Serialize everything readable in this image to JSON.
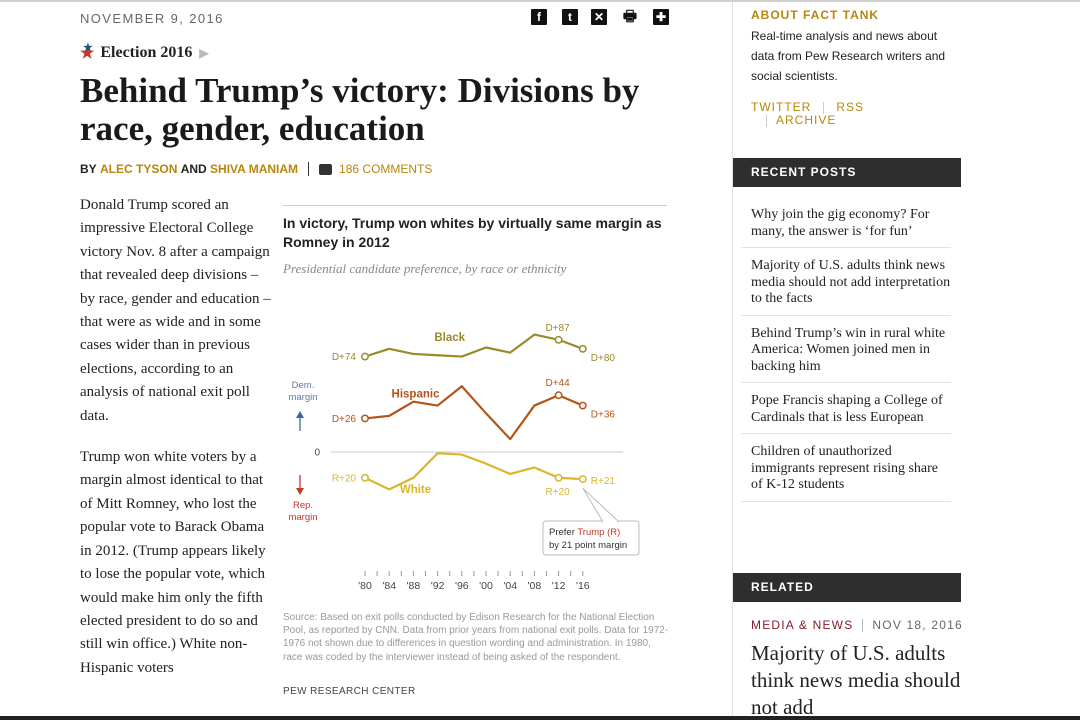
{
  "article": {
    "date": "NOVEMBER 9, 2016",
    "category": "Election 2016",
    "headline": "Behind Trump’s victory: Divisions by race, gender, education",
    "byline_prefix": "BY",
    "author1": "ALEC TYSON",
    "and_word": "AND",
    "author2": "SHIVA MANIAM",
    "comments": "186 COMMENTS",
    "share_icons": [
      "facebook-icon",
      "twitter-icon",
      "email-icon",
      "print-icon",
      "plus-icon"
    ],
    "share_glyphs": {
      "facebook": "f",
      "twitter": "t",
      "email": "✕",
      "print": "🖶",
      "plus": "✚"
    },
    "paragraphs": [
      "Donald Trump scored an impressive Electoral College victory Nov. 8 after a campaign that revealed deep divisions – by race, gender and education – that were as wide and in some cases wider than in previous elections, according to an analysis of national exit poll data.",
      "Trump won white voters by a margin almost identical to that of Mitt Romney, who lost the popular vote to Barack Obama in 2012. (Trump appears likely to lose the popular vote, which would make him only the fifth elected president to do so and still win office.) White non-Hispanic voters"
    ]
  },
  "figure": {
    "title": "In victory, Trump won whites by virtually same margin as Romney in 2012",
    "subtitle": "Presidential candidate preference, by race or ethnicity",
    "source": "Source: Based on exit polls conducted by Edison Research for the National Election Pool, as reported by CNN. Data from prior years from national exit polls. Data for 1972-1976 not shown due to differences in question wording and administration. In 1980, race was coded by the interviewer instead of being asked of the respondent.",
    "credit": "PEW RESEARCH CENTER"
  },
  "chart_data": {
    "type": "line",
    "title": "In victory, Trump won whites by virtually same margin as Romney in 2012",
    "subtitle": "Presidential candidate preference, by race or ethnicity",
    "x": [
      "'80",
      "'84",
      "'88",
      "'92",
      "'96",
      "'00",
      "'04",
      "'08",
      "'12",
      "'16"
    ],
    "x_years": [
      1980,
      1982,
      1984,
      1986,
      1988,
      1990,
      1992,
      1994,
      1996,
      1998,
      2000,
      2002,
      2004,
      2006,
      2008,
      2010,
      2012,
      2014,
      2016
    ],
    "ylabel_top": "Dem. margin",
    "ylabel_bottom": "Rep. margin",
    "zero_label": "0",
    "series": [
      {
        "name": "Black",
        "color": "#9a8a2c",
        "years": [
          1980,
          1984,
          1988,
          1992,
          1996,
          2000,
          2004,
          2008,
          2012,
          2016
        ],
        "values": [
          74,
          80,
          76,
          75,
          74,
          81,
          77,
          91,
          87,
          80
        ],
        "start_label": "D+74",
        "peak_label": "D+87",
        "end_label": "D+80"
      },
      {
        "name": "Hispanic",
        "color": "#b5541a",
        "years": [
          1980,
          1984,
          1988,
          1992,
          1996,
          2000,
          2004,
          2008,
          2012,
          2016
        ],
        "values": [
          26,
          28,
          39,
          36,
          51,
          30,
          10,
          36,
          44,
          36
        ],
        "start_label": "D+26",
        "peak_label": "D+44",
        "end_label": "D+36"
      },
      {
        "name": "White",
        "color": "#d9b62a",
        "years": [
          1980,
          1984,
          1988,
          1992,
          1996,
          2000,
          2004,
          2008,
          2012,
          2016
        ],
        "values": [
          -20,
          -29,
          -20,
          -1,
          -2,
          -9,
          -17,
          -12,
          -20,
          -21
        ],
        "start_label": "R+20",
        "peak_label": "R+20",
        "end_label": "R+21"
      }
    ],
    "ylim": [
      -45,
      95
    ],
    "grid": false,
    "legend": "inline",
    "callout_prefix": "Prefer",
    "callout_highlight": "Trump (R)",
    "callout_suffix": "by 21 point margin"
  },
  "sidebar": {
    "about_title": "ABOUT FACT TANK",
    "about_desc": "Real-time analysis and news about data from Pew Research writers and social scientists.",
    "link_twitter": "TWITTER",
    "link_rss": "RSS",
    "link_archive": "ARCHIVE",
    "recent_title": "RECENT POSTS",
    "recent_posts": [
      "Why join the gig economy? For many, the answer is ‘for fun’",
      "Majority of U.S. adults think news media should not add interpretation to the facts",
      "Behind Trump’s win in rural white America: Women joined men in backing him",
      "Pope Francis shaping a College of Cardinals that is less European",
      "Children of unauthorized immigrants represent rising share of K-12 students"
    ],
    "related_title": "RELATED",
    "related_section": "MEDIA & NEWS",
    "related_date": "NOV 18, 2016",
    "related_headline": "Majority of U.S. adults think news media should not add"
  }
}
